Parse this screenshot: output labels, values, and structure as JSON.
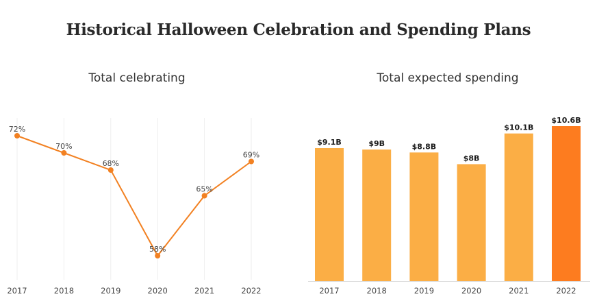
{
  "title": "Historical Halloween Celebration and Spending Plans",
  "chart_data": [
    {
      "type": "line",
      "title": "Total celebrating",
      "x": [
        "2017",
        "2018",
        "2019",
        "2020",
        "2021",
        "2022"
      ],
      "values": [
        72,
        70,
        68,
        58,
        65,
        69
      ],
      "data_labels": [
        "72%",
        "70%",
        "68%",
        "58%",
        "65%",
        "69%"
      ],
      "grid": "vertical",
      "colors": {
        "line": "#F28122",
        "grid": "#eeeeee"
      }
    },
    {
      "type": "bar",
      "title": "Total expected spending",
      "categories": [
        "2017",
        "2018",
        "2019",
        "2020",
        "2021",
        "2022"
      ],
      "values": [
        9.1,
        9.0,
        8.8,
        8.0,
        10.1,
        10.6
      ],
      "data_labels": [
        "$9.1B",
        "$9B",
        "$8.8B",
        "$8B",
        "$10.1B",
        "$10.6B"
      ],
      "ylim": [
        0,
        10.6
      ],
      "colors": {
        "bar": "#FBAE45",
        "highlight": "#FD7C1F",
        "baseline": "#dddddd"
      },
      "highlight_index": 5
    }
  ]
}
